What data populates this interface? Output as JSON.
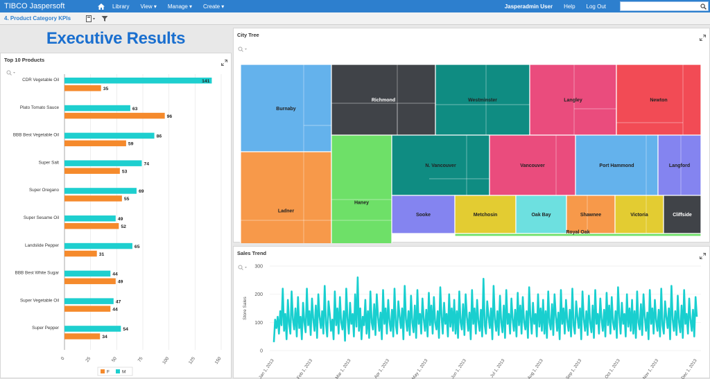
{
  "topbar": {
    "brand": "TIBCO Jaspersoft",
    "nav": [
      "Library",
      "View ▾",
      "Manage ▾",
      "Create ▾"
    ],
    "user": "Jasperadmin User",
    "help": "Help",
    "logout": "Log Out",
    "search_value": ""
  },
  "subbar": {
    "report_title": "4. Product Category KPIs"
  },
  "header": {
    "title": "Executive Results"
  },
  "colors": {
    "female": "#f58a2c",
    "male": "#1ecfcf",
    "accent": "#2d7fce",
    "trend": "#19cfcf"
  },
  "top10": {
    "title": "Top 10 Products",
    "legend": [
      "F",
      "M"
    ]
  },
  "city_tree": {
    "title": "City Tree"
  },
  "sales_trend": {
    "title": "Sales Trend"
  },
  "chart_data": [
    {
      "type": "bar",
      "title": "Top 10 Products",
      "orientation": "horizontal",
      "categories": [
        "CDR Vegetable Oil",
        "Plato Tomato Sauce",
        "BBB Best Vegetable Oil",
        "Super Salt",
        "Super Oregano",
        "Super Sesame Oil",
        "Landslide Pepper",
        "BBB Best White Sugar",
        "Super Vegetable Oil",
        "Super Pepper"
      ],
      "series": [
        {
          "name": "M",
          "color": "#1ecfcf",
          "values": [
            141,
            63,
            86,
            74,
            69,
            49,
            65,
            44,
            47,
            54
          ]
        },
        {
          "name": "F",
          "color": "#f58a2c",
          "values": [
            35,
            96,
            59,
            53,
            55,
            52,
            31,
            49,
            44,
            34
          ]
        }
      ],
      "xlim": [
        0,
        150
      ],
      "xticks": [
        0,
        25,
        50,
        75,
        100,
        125,
        150
      ],
      "legend": "bottom"
    },
    {
      "type": "treemap",
      "title": "City Tree",
      "cells": [
        {
          "label": "Burnaby",
          "color": "#64b2ec"
        },
        {
          "label": "Ladner",
          "color": "#f7994a"
        },
        {
          "label": "Richmond",
          "color": "#404348"
        },
        {
          "label": "Westminster",
          "color": "#0f8c82"
        },
        {
          "label": "Langley",
          "color": "#ea4c7d"
        },
        {
          "label": "Newton",
          "color": "#f24b55"
        },
        {
          "label": "Haney",
          "color": "#6ee068"
        },
        {
          "label": "N. Vancouver",
          "color": "#0f8c82"
        },
        {
          "label": "Vancouver",
          "color": "#ea4c7d"
        },
        {
          "label": "Port Hammond",
          "color": "#64b2ec"
        },
        {
          "label": "Langford",
          "color": "#8484f0"
        },
        {
          "label": "Sooke",
          "color": "#8484f0"
        },
        {
          "label": "Metchosin",
          "color": "#e3cc32"
        },
        {
          "label": "Oak Bay",
          "color": "#6de0e0"
        },
        {
          "label": "Shawnee",
          "color": "#f7994a"
        },
        {
          "label": "Victoria",
          "color": "#e3cc32"
        },
        {
          "label": "Cliffside",
          "color": "#404348"
        },
        {
          "label": "Royal Oak",
          "color": "#6ee068"
        }
      ]
    },
    {
      "type": "line",
      "title": "Sales Trend",
      "ylabel": "Store Sales",
      "ylim": [
        0,
        300
      ],
      "yticks": [
        0,
        100,
        200,
        300
      ],
      "xticks": [
        "Jan 1, 2013",
        "Feb 1, 2013",
        "Mar 1, 2013",
        "Apr 1, 2013",
        "May 1, 2013",
        "Jun 1, 2013",
        "Jul 1, 2013",
        "Aug 1, 2013",
        "Sep 1, 2013",
        "Oct 1, 2013",
        "Nov 1, 2013",
        "Dec 1, 2013"
      ],
      "series": [
        {
          "color": "#19cfcf",
          "values": [
            30,
            110,
            80,
            120,
            60,
            140,
            90,
            220,
            70,
            130,
            40,
            180,
            95,
            60,
            210,
            110,
            75,
            150,
            50,
            190,
            80,
            120,
            40,
            170,
            100,
            65,
            220,
            90,
            140,
            55,
            185,
            110,
            70,
            160,
            45,
            200,
            120,
            80,
            140,
            60,
            230,
            95,
            50,
            175,
            130,
            70,
            110,
            40,
            210,
            90,
            150,
            60,
            190,
            100,
            75,
            140,
            35,
            220,
            115,
            60,
            170,
            95,
            130,
            50,
            200,
            85,
            260,
            70,
            150,
            40,
            120,
            90,
            180,
            60,
            140,
            45,
            210,
            100,
            75,
            165,
            55,
            200,
            120,
            70,
            135,
            40,
            215,
            95,
            150,
            60,
            180,
            105,
            70,
            145,
            50,
            220,
            90,
            60,
            175,
            120,
            80,
            150,
            40,
            230,
            110,
            70,
            140,
            55,
            195,
            100,
            65,
            160,
            45,
            215,
            95,
            130,
            60,
            185,
            110,
            70,
            145,
            50,
            205,
            90,
            160,
            60,
            190,
            100,
            75,
            140,
            45,
            225,
            120,
            60,
            170,
            95,
            130,
            50,
            200,
            85,
            150,
            70,
            180,
            60,
            140,
            45,
            210,
            100,
            75,
            165,
            55,
            200,
            120,
            70,
            135,
            40,
            215,
            95,
            150,
            60,
            180,
            105,
            70,
            145,
            50,
            255,
            90,
            60,
            175,
            120,
            80,
            150,
            40,
            230,
            110,
            70,
            140,
            55,
            195,
            100,
            65,
            160,
            45,
            215,
            95,
            130,
            60,
            185,
            110,
            70,
            145,
            50,
            205,
            90,
            160,
            60,
            190,
            100,
            75,
            140,
            45,
            225,
            120,
            60,
            170,
            95,
            130,
            50,
            200,
            85,
            150,
            70,
            180,
            60,
            140,
            45,
            210,
            100,
            75,
            165,
            55,
            200,
            120,
            70,
            135,
            40,
            215,
            95,
            150,
            60,
            180,
            105,
            70,
            145,
            50,
            220,
            90,
            60,
            175,
            120,
            80,
            150,
            40,
            210,
            110,
            70,
            140,
            55,
            195,
            100,
            65,
            160,
            45,
            215,
            95,
            130,
            60,
            185,
            110,
            70,
            145,
            50,
            205,
            90,
            160,
            60,
            190,
            100,
            75,
            140,
            45,
            225,
            120,
            60,
            170,
            95,
            130,
            50,
            200,
            85,
            150,
            70,
            180,
            60,
            140,
            45,
            210,
            100,
            75,
            165,
            55,
            200,
            120,
            70,
            135,
            40,
            215,
            95,
            150,
            60,
            180,
            105,
            70,
            145,
            50,
            220,
            90,
            60,
            175,
            120,
            80,
            150,
            40,
            230,
            110,
            70,
            140,
            55,
            195,
            100,
            65,
            160,
            45,
            215,
            95,
            130,
            60,
            185,
            110,
            70,
            145,
            50,
            190,
            120
          ]
        }
      ]
    }
  ]
}
